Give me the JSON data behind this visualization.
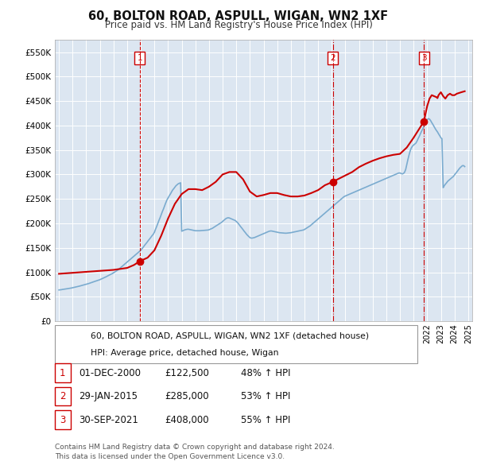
{
  "title": "60, BOLTON ROAD, ASPULL, WIGAN, WN2 1XF",
  "subtitle": "Price paid vs. HM Land Registry's House Price Index (HPI)",
  "background_color": "#ffffff",
  "plot_bg_color": "#dce6f1",
  "grid_color": "#ffffff",
  "ylim": [
    0,
    575000
  ],
  "yticks": [
    0,
    50000,
    100000,
    150000,
    200000,
    250000,
    300000,
    350000,
    400000,
    450000,
    500000,
    550000
  ],
  "ytick_labels": [
    "£0",
    "£50K",
    "£100K",
    "£150K",
    "£200K",
    "£250K",
    "£300K",
    "£350K",
    "£400K",
    "£450K",
    "£500K",
    "£550K"
  ],
  "xlim_start": 1994.7,
  "xlim_end": 2025.3,
  "sale_dates_year": [
    2000.92,
    2015.08,
    2021.75
  ],
  "sale_prices": [
    122500,
    285000,
    408000
  ],
  "sale_labels": [
    "1",
    "2",
    "3"
  ],
  "sale1_vline_style": "dashed",
  "sale23_vline_style": "dashdot",
  "hpi_years": [
    1995.0,
    1995.08,
    1995.17,
    1995.25,
    1995.33,
    1995.42,
    1995.5,
    1995.58,
    1995.67,
    1995.75,
    1995.83,
    1995.92,
    1996.0,
    1996.08,
    1996.17,
    1996.25,
    1996.33,
    1996.42,
    1996.5,
    1996.58,
    1996.67,
    1996.75,
    1996.83,
    1996.92,
    1997.0,
    1997.08,
    1997.17,
    1997.25,
    1997.33,
    1997.42,
    1997.5,
    1997.58,
    1997.67,
    1997.75,
    1997.83,
    1997.92,
    1998.0,
    1998.08,
    1998.17,
    1998.25,
    1998.33,
    1998.42,
    1998.5,
    1998.58,
    1998.67,
    1998.75,
    1998.83,
    1998.92,
    1999.0,
    1999.08,
    1999.17,
    1999.25,
    1999.33,
    1999.42,
    1999.5,
    1999.58,
    1999.67,
    1999.75,
    1999.83,
    1999.92,
    2000.0,
    2000.08,
    2000.17,
    2000.25,
    2000.33,
    2000.42,
    2000.5,
    2000.58,
    2000.67,
    2000.75,
    2000.83,
    2000.92,
    2001.0,
    2001.08,
    2001.17,
    2001.25,
    2001.33,
    2001.42,
    2001.5,
    2001.58,
    2001.67,
    2001.75,
    2001.83,
    2001.92,
    2002.0,
    2002.08,
    2002.17,
    2002.25,
    2002.33,
    2002.42,
    2002.5,
    2002.58,
    2002.67,
    2002.75,
    2002.83,
    2002.92,
    2003.0,
    2003.08,
    2003.17,
    2003.25,
    2003.33,
    2003.42,
    2003.5,
    2003.58,
    2003.67,
    2003.75,
    2003.83,
    2003.92,
    2004.0,
    2004.08,
    2004.17,
    2004.25,
    2004.33,
    2004.42,
    2004.5,
    2004.58,
    2004.67,
    2004.75,
    2004.83,
    2004.92,
    2005.0,
    2005.08,
    2005.17,
    2005.25,
    2005.33,
    2005.42,
    2005.5,
    2005.58,
    2005.67,
    2005.75,
    2005.83,
    2005.92,
    2006.0,
    2006.08,
    2006.17,
    2006.25,
    2006.33,
    2006.42,
    2006.5,
    2006.58,
    2006.67,
    2006.75,
    2006.83,
    2006.92,
    2007.0,
    2007.08,
    2007.17,
    2007.25,
    2007.33,
    2007.42,
    2007.5,
    2007.58,
    2007.67,
    2007.75,
    2007.83,
    2007.92,
    2008.0,
    2008.08,
    2008.17,
    2008.25,
    2008.33,
    2008.42,
    2008.5,
    2008.58,
    2008.67,
    2008.75,
    2008.83,
    2008.92,
    2009.0,
    2009.08,
    2009.17,
    2009.25,
    2009.33,
    2009.42,
    2009.5,
    2009.58,
    2009.67,
    2009.75,
    2009.83,
    2009.92,
    2010.0,
    2010.08,
    2010.17,
    2010.25,
    2010.33,
    2010.42,
    2010.5,
    2010.58,
    2010.67,
    2010.75,
    2010.83,
    2010.92,
    2011.0,
    2011.08,
    2011.17,
    2011.25,
    2011.33,
    2011.42,
    2011.5,
    2011.58,
    2011.67,
    2011.75,
    2011.83,
    2011.92,
    2012.0,
    2012.08,
    2012.17,
    2012.25,
    2012.33,
    2012.42,
    2012.5,
    2012.58,
    2012.67,
    2012.75,
    2012.83,
    2012.92,
    2013.0,
    2013.08,
    2013.17,
    2013.25,
    2013.33,
    2013.42,
    2013.5,
    2013.58,
    2013.67,
    2013.75,
    2013.83,
    2013.92,
    2014.0,
    2014.08,
    2014.17,
    2014.25,
    2014.33,
    2014.42,
    2014.5,
    2014.58,
    2014.67,
    2014.75,
    2014.83,
    2014.92,
    2015.0,
    2015.08,
    2015.17,
    2015.25,
    2015.33,
    2015.42,
    2015.5,
    2015.58,
    2015.67,
    2015.75,
    2015.83,
    2015.92,
    2016.0,
    2016.08,
    2016.17,
    2016.25,
    2016.33,
    2016.42,
    2016.5,
    2016.58,
    2016.67,
    2016.75,
    2016.83,
    2016.92,
    2017.0,
    2017.08,
    2017.17,
    2017.25,
    2017.33,
    2017.42,
    2017.5,
    2017.58,
    2017.67,
    2017.75,
    2017.83,
    2017.92,
    2018.0,
    2018.08,
    2018.17,
    2018.25,
    2018.33,
    2018.42,
    2018.5,
    2018.58,
    2018.67,
    2018.75,
    2018.83,
    2018.92,
    2019.0,
    2019.08,
    2019.17,
    2019.25,
    2019.33,
    2019.42,
    2019.5,
    2019.58,
    2019.67,
    2019.75,
    2019.83,
    2019.92,
    2020.0,
    2020.08,
    2020.17,
    2020.25,
    2020.33,
    2020.42,
    2020.5,
    2020.58,
    2020.67,
    2020.75,
    2020.83,
    2020.92,
    2021.0,
    2021.08,
    2021.17,
    2021.25,
    2021.33,
    2021.42,
    2021.5,
    2021.58,
    2021.67,
    2021.75,
    2021.83,
    2021.92,
    2022.0,
    2022.08,
    2022.17,
    2022.25,
    2022.33,
    2022.42,
    2022.5,
    2022.58,
    2022.67,
    2022.75,
    2022.83,
    2022.92,
    2023.0,
    2023.08,
    2023.17,
    2023.25,
    2023.33,
    2023.42,
    2023.5,
    2023.58,
    2023.67,
    2023.75,
    2023.83,
    2023.92,
    2024.0,
    2024.08,
    2024.17,
    2024.25,
    2024.33,
    2024.42,
    2024.5,
    2024.58,
    2024.67,
    2024.75
  ],
  "hpi_values": [
    64000,
    64200,
    64500,
    65000,
    65300,
    65700,
    66000,
    66400,
    66800,
    67200,
    67600,
    68000,
    68500,
    69000,
    69500,
    70000,
    70600,
    71200,
    71800,
    72400,
    73000,
    73600,
    74200,
    74800,
    75500,
    76200,
    77000,
    77800,
    78600,
    79400,
    80200,
    81000,
    81800,
    82600,
    83400,
    84200,
    85000,
    86000,
    87000,
    88000,
    89200,
    90400,
    91600,
    92800,
    94000,
    95200,
    96400,
    97600,
    99000,
    100500,
    102000,
    103500,
    105000,
    107000,
    109000,
    111000,
    113000,
    115000,
    117000,
    119000,
    121000,
    123000,
    125000,
    127000,
    129000,
    131000,
    133000,
    135000,
    137000,
    139000,
    141000,
    143000,
    145000,
    148000,
    151000,
    154000,
    157000,
    160000,
    163000,
    166000,
    169000,
    172000,
    175000,
    178000,
    182000,
    188000,
    194000,
    200000,
    206000,
    212000,
    218000,
    224000,
    230000,
    236000,
    242000,
    248000,
    252000,
    256000,
    260000,
    264000,
    268000,
    271000,
    274000,
    277000,
    279000,
    281000,
    282000,
    283000,
    184000,
    185000,
    186000,
    187000,
    187500,
    188000,
    188000,
    187500,
    187000,
    186500,
    186000,
    185500,
    185000,
    185000,
    185000,
    185000,
    185000,
    185200,
    185400,
    185600,
    185800,
    186000,
    186200,
    186400,
    187000,
    188000,
    189000,
    190000,
    191500,
    193000,
    194500,
    196000,
    197500,
    199000,
    200500,
    202000,
    204000,
    206000,
    208000,
    210000,
    211000,
    211500,
    211000,
    210000,
    209000,
    208000,
    207000,
    206000,
    204000,
    202000,
    199000,
    196000,
    193000,
    190000,
    187000,
    184000,
    181000,
    178000,
    175500,
    173000,
    171000,
    170000,
    170000,
    170500,
    171000,
    172000,
    173000,
    174000,
    175000,
    176000,
    177000,
    178000,
    179000,
    180000,
    181000,
    182000,
    183000,
    184000,
    184500,
    184500,
    184000,
    183500,
    183000,
    182500,
    182000,
    181500,
    181000,
    180800,
    180600,
    180400,
    180200,
    180000,
    180000,
    180200,
    180400,
    180600,
    181000,
    181500,
    182000,
    182500,
    183000,
    183500,
    184000,
    184500,
    185000,
    185500,
    186000,
    186500,
    187500,
    189000,
    190500,
    192000,
    193500,
    195000,
    197000,
    199000,
    201000,
    203000,
    205000,
    207000,
    209000,
    211000,
    213000,
    215000,
    217000,
    219000,
    221000,
    223000,
    225000,
    227000,
    229000,
    231000,
    233000,
    235000,
    237000,
    239000,
    241000,
    243000,
    245000,
    247000,
    249000,
    251000,
    253000,
    255000,
    256000,
    257000,
    258000,
    259000,
    260000,
    261000,
    262000,
    263000,
    264000,
    265000,
    266000,
    267000,
    268000,
    269000,
    270000,
    271000,
    272000,
    273000,
    274000,
    275000,
    276000,
    277000,
    278000,
    279000,
    280000,
    281000,
    282000,
    283000,
    284000,
    285000,
    286000,
    287000,
    288000,
    289000,
    290000,
    291000,
    292000,
    293000,
    294000,
    295000,
    296000,
    297000,
    298000,
    299000,
    300000,
    301000,
    302000,
    303000,
    303000,
    302000,
    301000,
    302000,
    304000,
    310000,
    320000,
    330000,
    340000,
    348000,
    354000,
    358000,
    360000,
    362000,
    364000,
    368000,
    373000,
    378000,
    383000,
    388000,
    393000,
    398000,
    403000,
    408000,
    412000,
    414000,
    413000,
    410000,
    406000,
    402000,
    398000,
    394000,
    390000,
    387000,
    383000,
    379000,
    375000,
    373000,
    273000,
    277000,
    280000,
    283000,
    286000,
    288000,
    290000,
    292000,
    294000,
    296000,
    299000,
    302000,
    305000,
    308000,
    311000,
    314000,
    316000,
    318000,
    318000,
    316000
  ],
  "property_years": [
    1995.0,
    1995.5,
    1996.0,
    1996.5,
    1997.0,
    1997.5,
    1998.0,
    1998.5,
    1999.0,
    1999.5,
    2000.0,
    2000.5,
    2000.92,
    2001.5,
    2002.0,
    2002.5,
    2003.0,
    2003.5,
    2004.0,
    2004.5,
    2005.0,
    2005.5,
    2006.0,
    2006.5,
    2007.0,
    2007.5,
    2008.0,
    2008.5,
    2009.0,
    2009.5,
    2010.0,
    2010.5,
    2011.0,
    2011.5,
    2012.0,
    2012.5,
    2013.0,
    2013.5,
    2014.0,
    2014.5,
    2015.08,
    2015.5,
    2016.0,
    2016.5,
    2017.0,
    2017.5,
    2018.0,
    2018.5,
    2019.0,
    2019.5,
    2020.0,
    2020.5,
    2021.0,
    2021.75,
    2022.0,
    2022.17,
    2022.33,
    2022.5,
    2022.67,
    2022.75,
    2022.83,
    2023.0,
    2023.17,
    2023.33,
    2023.5,
    2023.67,
    2023.83,
    2024.0,
    2024.17,
    2024.5,
    2024.75
  ],
  "property_values": [
    97000,
    98000,
    99000,
    100000,
    101000,
    102000,
    103000,
    104000,
    105000,
    107000,
    109000,
    115000,
    122500,
    130000,
    145000,
    175000,
    210000,
    240000,
    260000,
    270000,
    270000,
    268000,
    275000,
    285000,
    300000,
    305000,
    305000,
    290000,
    265000,
    255000,
    258000,
    262000,
    262000,
    258000,
    255000,
    255000,
    257000,
    262000,
    268000,
    278000,
    285000,
    291000,
    298000,
    305000,
    315000,
    322000,
    328000,
    333000,
    337000,
    340000,
    342000,
    355000,
    375000,
    408000,
    440000,
    455000,
    462000,
    460000,
    458000,
    456000,
    462000,
    468000,
    460000,
    455000,
    462000,
    465000,
    462000,
    462000,
    465000,
    468000,
    470000
  ],
  "legend_label_red": "60, BOLTON ROAD, ASPULL, WIGAN, WN2 1XF (detached house)",
  "legend_label_blue": "HPI: Average price, detached house, Wigan",
  "table_data": [
    [
      "1",
      "01-DEC-2000",
      "£122,500",
      "48% ↑ HPI"
    ],
    [
      "2",
      "29-JAN-2015",
      "£285,000",
      "53% ↑ HPI"
    ],
    [
      "3",
      "30-SEP-2021",
      "£408,000",
      "55% ↑ HPI"
    ]
  ],
  "footnote": "Contains HM Land Registry data © Crown copyright and database right 2024.\nThis data is licensed under the Open Government Licence v3.0.",
  "red_color": "#cc0000",
  "blue_color": "#7aabcf",
  "vline_color": "#cc0000"
}
